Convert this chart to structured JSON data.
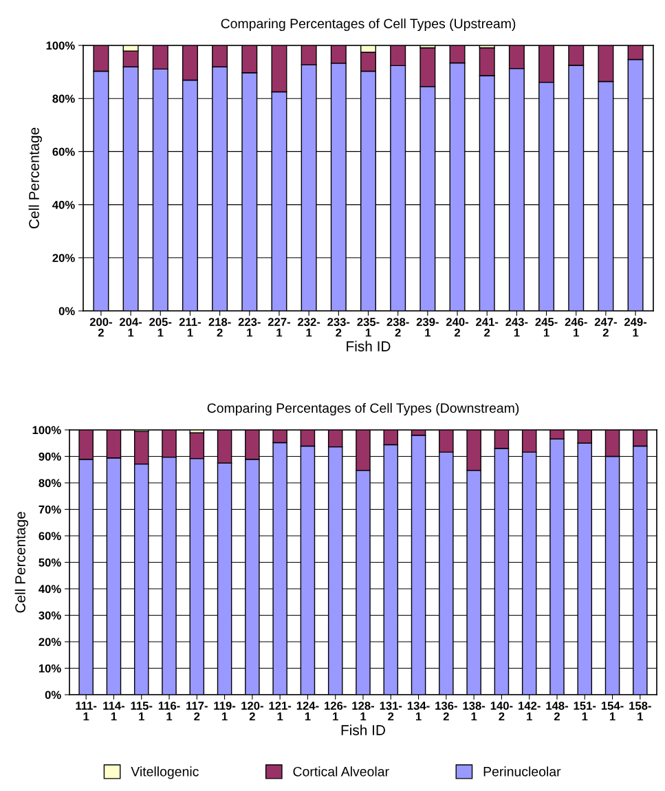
{
  "chart_data": [
    {
      "type": "bar",
      "stacked": true,
      "title": "Comparing Percentages of Cell Types (Upstream)",
      "xlabel": "Fish ID",
      "ylabel": "Cell Percentage",
      "categories": [
        "200-\n2",
        "204-\n1",
        "205-\n1",
        "211-\n1",
        "218-\n2",
        "223-\n1",
        "227-\n1",
        "232-\n1",
        "233-\n2",
        "235-\n1",
        "238-\n2",
        "239-\n1",
        "240-\n2",
        "241-\n2",
        "243-\n1",
        "245-\n1",
        "246-\n1",
        "247-\n2",
        "249-\n1"
      ],
      "series": [
        {
          "name": "Perinucleolar",
          "color": "#9999ff",
          "values": [
            90.3,
            91.9,
            91.1,
            86.9,
            91.9,
            89.7,
            82.5,
            92.7,
            93.3,
            90.3,
            92.4,
            84.5,
            93.4,
            88.6,
            91.3,
            86.1,
            92.5,
            86.4,
            94.7
          ]
        },
        {
          "name": "Cortical Alveolar",
          "color": "#993366",
          "values": [
            9.7,
            6.0,
            8.9,
            13.1,
            8.1,
            10.3,
            17.5,
            7.3,
            6.7,
            7.1,
            7.6,
            14.6,
            6.6,
            10.5,
            8.7,
            13.9,
            7.5,
            13.6,
            5.3
          ]
        },
        {
          "name": "Vitellogenic",
          "color": "#ffffcc",
          "values": [
            null,
            2.1,
            null,
            null,
            null,
            null,
            null,
            null,
            null,
            2.6,
            null,
            0.9,
            null,
            0.9,
            null,
            null,
            null,
            null,
            null
          ]
        }
      ],
      "ylim": [
        0,
        100
      ],
      "yticks": [
        {
          "value": 0,
          "label": "0%"
        },
        {
          "value": 20,
          "label": "20%"
        },
        {
          "value": 40,
          "label": "40%"
        },
        {
          "value": 60,
          "label": "60%"
        },
        {
          "value": 80,
          "label": "80%"
        },
        {
          "value": 100,
          "label": "100%"
        }
      ],
      "grid": "y",
      "legend": "bottom"
    },
    {
      "type": "bar",
      "stacked": true,
      "title": "Comparing Percentages of Cell Types (Downstream)",
      "xlabel": "Fish ID",
      "ylabel": "Cell Percentage",
      "categories": [
        "111-\n1",
        "114-\n1",
        "115-\n1",
        "116-\n1",
        "117-\n2",
        "119-\n1",
        "120-\n2",
        "121-\n1",
        "124-\n1",
        "126-\n1",
        "128-\n1",
        "131-\n2",
        "134-\n1",
        "136-\n2",
        "138-\n1",
        "140-\n2",
        "142-\n1",
        "148-\n2",
        "151-\n1",
        "154-\n1",
        "158-\n1"
      ],
      "series": [
        {
          "name": "Perinucleolar",
          "color": "#9999ff",
          "values": [
            88.9,
            89.4,
            87.1,
            89.7,
            89.2,
            87.5,
            88.9,
            95.2,
            93.9,
            93.6,
            84.7,
            94.4,
            98.0,
            91.6,
            84.7,
            93.0,
            91.6,
            96.6,
            95.0,
            90.0,
            93.9
          ]
        },
        {
          "name": "Cortical Alveolar",
          "color": "#993366",
          "values": [
            11.1,
            10.6,
            12.3,
            10.3,
            9.7,
            12.5,
            11.1,
            4.8,
            6.1,
            6.4,
            15.3,
            5.6,
            2.0,
            8.4,
            15.3,
            7.0,
            8.4,
            3.4,
            5.0,
            10.0,
            6.1
          ]
        },
        {
          "name": "Vitellogenic",
          "color": "#ffffcc",
          "values": [
            null,
            null,
            0.6,
            null,
            1.1,
            null,
            null,
            null,
            null,
            null,
            null,
            null,
            null,
            null,
            null,
            null,
            null,
            null,
            null,
            null,
            null
          ]
        }
      ],
      "ylim": [
        0,
        100
      ],
      "yticks": [
        {
          "value": 0,
          "label": "0%"
        },
        {
          "value": 10,
          "label": "10%"
        },
        {
          "value": 20,
          "label": "20%"
        },
        {
          "value": 30,
          "label": "30%"
        },
        {
          "value": 40,
          "label": "40%"
        },
        {
          "value": 50,
          "label": "50%"
        },
        {
          "value": 60,
          "label": "60%"
        },
        {
          "value": 70,
          "label": "70%"
        },
        {
          "value": 80,
          "label": "80%"
        },
        {
          "value": 90,
          "label": "90%"
        },
        {
          "value": 100,
          "label": "100%"
        }
      ],
      "grid": "y",
      "legend": "bottom"
    }
  ]
}
